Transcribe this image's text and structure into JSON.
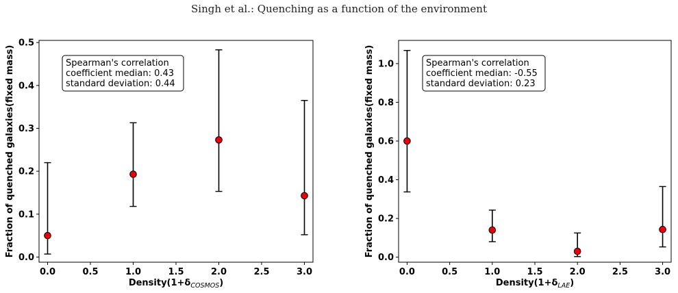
{
  "page_header": "Singh et al.: Quenching as a function of the environment",
  "chart_data": [
    {
      "type": "scatter",
      "title": "",
      "xlabel_main": "Density(1+δ",
      "xlabel_sub": "COSMOS",
      "xlabel_end": ")",
      "ylabel": "Fraction of quenched galaxies(fixed mass)",
      "xlim": [
        -0.1,
        3.1
      ],
      "ylim": [
        -0.012,
        0.505
      ],
      "xticks": [
        0.0,
        0.5,
        1.0,
        1.5,
        2.0,
        2.5,
        3.0
      ],
      "xtick_labels": [
        "0.0",
        "0.5",
        "1.0",
        "1.5",
        "2.0",
        "2.5",
        "3.0"
      ],
      "yticks": [
        0.0,
        0.1,
        0.2,
        0.3,
        0.4,
        0.5
      ],
      "ytick_labels": [
        "0.0",
        "0.1",
        "0.2",
        "0.3",
        "0.4",
        "0.5"
      ],
      "grid": false,
      "point_color": "#e8000b",
      "x": [
        0,
        1,
        2,
        3
      ],
      "y": [
        0.05,
        0.193,
        0.273,
        0.143
      ],
      "err_low": [
        0.007,
        0.118,
        0.153,
        0.052
      ],
      "err_high": [
        0.22,
        0.313,
        0.483,
        0.365
      ],
      "annotation": [
        "Spearman's correlation",
        "coefficient median: 0.43",
        "standard deviation: 0.44"
      ]
    },
    {
      "type": "scatter",
      "title": "",
      "xlabel_main": "Density(1+δ",
      "xlabel_sub": "LAE",
      "xlabel_end": ")",
      "ylabel": "Fraction of quenched galaxies(fixed mass)",
      "xlim": [
        -0.1,
        3.1
      ],
      "ylim": [
        -0.026,
        1.12
      ],
      "xticks": [
        0.0,
        0.5,
        1.0,
        1.5,
        2.0,
        2.5,
        3.0
      ],
      "xtick_labels": [
        "0.0",
        "0.5",
        "1.0",
        "1.5",
        "2.0",
        "2.5",
        "3.0"
      ],
      "yticks": [
        0.0,
        0.2,
        0.4,
        0.6,
        0.8,
        1.0
      ],
      "ytick_labels": [
        "0.0",
        "0.2",
        "0.4",
        "0.6",
        "0.8",
        "1.0"
      ],
      "grid": false,
      "point_color": "#e8000b",
      "x": [
        0,
        1,
        2,
        3
      ],
      "y": [
        0.6,
        0.14,
        0.03,
        0.143
      ],
      "err_low": [
        0.337,
        0.08,
        0.003,
        0.053
      ],
      "err_high": [
        1.068,
        0.243,
        0.125,
        0.365
      ],
      "annotation": [
        "Spearman's correlation",
        "coefficient median: -0.55",
        "standard deviation: 0.23"
      ]
    }
  ]
}
